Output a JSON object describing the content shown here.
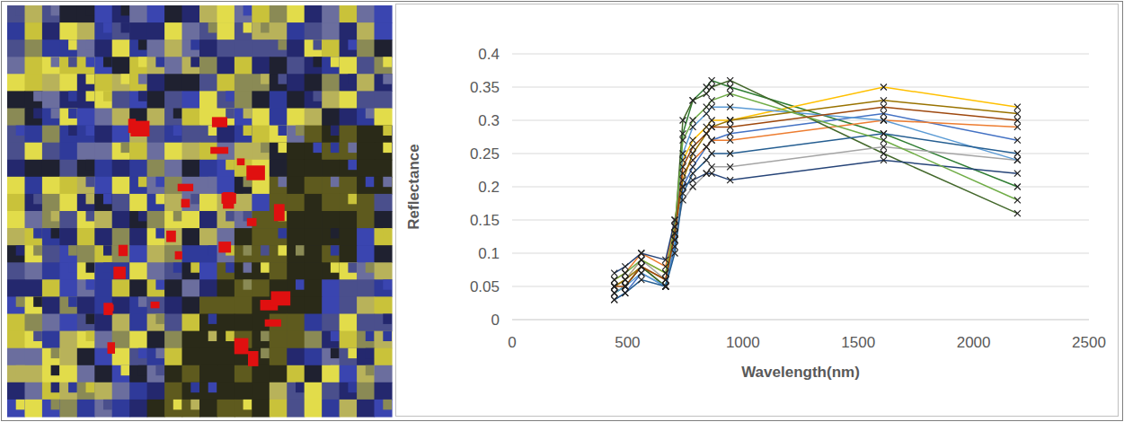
{
  "chart_data": {
    "type": "line",
    "x_label": "Wavelength(nm)",
    "y_label": "Reflectance",
    "x": [
      443,
      490,
      560,
      665,
      705,
      740,
      783,
      842,
      865,
      945,
      1610,
      2190
    ],
    "xlim": [
      0,
      2500
    ],
    "xticks": [
      0,
      500,
      1000,
      1500,
      2000,
      2500
    ],
    "ylim": [
      0,
      0.4
    ],
    "yticks": [
      0,
      0.05,
      0.1,
      0.15,
      0.2,
      0.25,
      0.3,
      0.35,
      0.4
    ],
    "grid": true,
    "marker": "x",
    "series": [
      {
        "color": "#2e7d32",
        "values": [
          0.04,
          0.05,
          0.08,
          0.05,
          0.12,
          0.28,
          0.33,
          0.35,
          0.36,
          0.35,
          0.28,
          0.2
        ]
      },
      {
        "color": "#ffc000",
        "values": [
          0.05,
          0.06,
          0.09,
          0.07,
          0.14,
          0.24,
          0.27,
          0.29,
          0.3,
          0.3,
          0.35,
          0.32
        ]
      },
      {
        "color": "#4472c4",
        "values": [
          0.03,
          0.04,
          0.07,
          0.05,
          0.11,
          0.2,
          0.23,
          0.26,
          0.27,
          0.28,
          0.31,
          0.27
        ]
      },
      {
        "color": "#ed7d31",
        "values": [
          0.06,
          0.07,
          0.1,
          0.08,
          0.15,
          0.22,
          0.24,
          0.26,
          0.27,
          0.27,
          0.3,
          0.29
        ]
      },
      {
        "color": "#43682b",
        "values": [
          0.04,
          0.05,
          0.08,
          0.05,
          0.13,
          0.3,
          0.33,
          0.34,
          0.35,
          0.36,
          0.25,
          0.16
        ]
      },
      {
        "color": "#a5a5a5",
        "values": [
          0.05,
          0.06,
          0.09,
          0.06,
          0.12,
          0.18,
          0.2,
          0.22,
          0.23,
          0.23,
          0.26,
          0.24
        ]
      },
      {
        "color": "#264478",
        "values": [
          0.07,
          0.08,
          0.1,
          0.09,
          0.15,
          0.2,
          0.21,
          0.22,
          0.22,
          0.21,
          0.24,
          0.22
        ]
      },
      {
        "color": "#5b9bd5",
        "values": [
          0.04,
          0.05,
          0.07,
          0.05,
          0.12,
          0.25,
          0.29,
          0.31,
          0.32,
          0.32,
          0.3,
          0.24
        ]
      },
      {
        "color": "#997300",
        "values": [
          0.05,
          0.06,
          0.08,
          0.06,
          0.13,
          0.21,
          0.25,
          0.28,
          0.29,
          0.3,
          0.33,
          0.31
        ]
      },
      {
        "color": "#255e91",
        "values": [
          0.03,
          0.04,
          0.06,
          0.05,
          0.1,
          0.19,
          0.22,
          0.24,
          0.25,
          0.25,
          0.28,
          0.25
        ]
      },
      {
        "color": "#70ad47",
        "values": [
          0.06,
          0.07,
          0.09,
          0.07,
          0.14,
          0.27,
          0.3,
          0.32,
          0.33,
          0.34,
          0.27,
          0.18
        ]
      },
      {
        "color": "#9e480e",
        "values": [
          0.05,
          0.05,
          0.08,
          0.06,
          0.13,
          0.23,
          0.26,
          0.28,
          0.29,
          0.29,
          0.32,
          0.3
        ]
      }
    ]
  }
}
